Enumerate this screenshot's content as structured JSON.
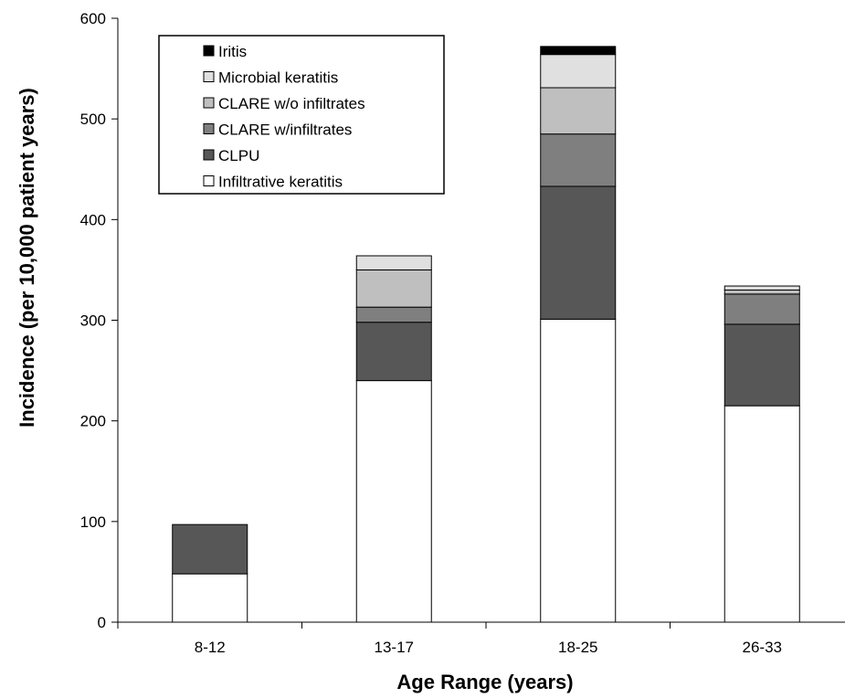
{
  "chart_data": {
    "type": "bar",
    "stacked": true,
    "title": "",
    "xlabel": "Age Range (years)",
    "ylabel": "Incidence (per 10,000 patient years)",
    "categories": [
      "8-12",
      "13-17",
      "18-25",
      "26-33"
    ],
    "ylim": [
      0,
      600
    ],
    "yticks": [
      0,
      100,
      200,
      300,
      400,
      500,
      600
    ],
    "grid": false,
    "legend_position": "top-left",
    "series": [
      {
        "name": "Infiltrative keratitis",
        "color": "#ffffff",
        "values": [
          48,
          240,
          301,
          215
        ]
      },
      {
        "name": "CLPU",
        "color": "#575757",
        "values": [
          49,
          58,
          132,
          81
        ]
      },
      {
        "name": "CLARE w/infiltrates",
        "color": "#7f7f7f",
        "values": [
          0,
          15,
          52,
          30
        ]
      },
      {
        "name": "CLARE w/o infiltrates",
        "color": "#bfbfbf",
        "values": [
          0,
          37,
          46,
          4
        ]
      },
      {
        "name": "Microbial keratitis",
        "color": "#e0e0e0",
        "values": [
          0,
          14,
          33,
          4
        ]
      },
      {
        "name": "Iritis",
        "color": "#000000",
        "values": [
          0,
          0,
          8,
          0
        ]
      }
    ],
    "legend_order": [
      "Iritis",
      "Microbial keratitis",
      "CLARE w/o infiltrates",
      "CLARE w/infiltrates",
      "CLPU",
      "Infiltrative keratitis"
    ]
  }
}
